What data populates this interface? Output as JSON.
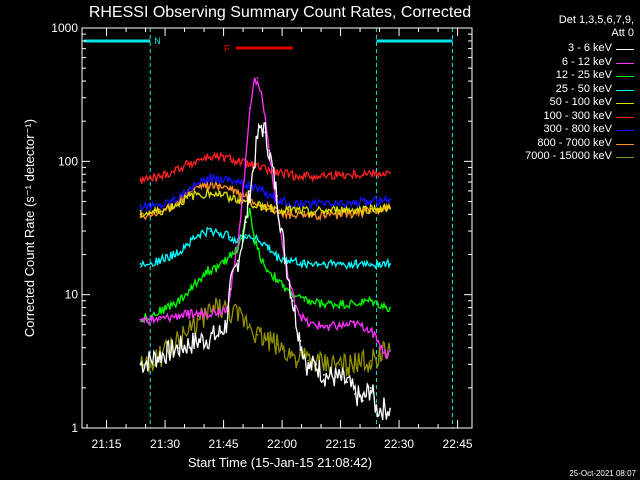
{
  "chart_data": {
    "type": "line",
    "title": "RHESSI Observing Summary Count Rates, Corrected",
    "ylabel": "Corrected Count Rate (s⁻¹ detector⁻¹)",
    "xlabel": "Start Time (15-Jan-15 21:08:42)",
    "y_scale": "log",
    "ylim": [
      1,
      1000
    ],
    "y_ticks": [
      1,
      10,
      100,
      1000
    ],
    "y_tick_labels": [
      "1",
      "10",
      "100",
      "1000"
    ],
    "x_unit": "minutes after 21:08:42",
    "xlim": [
      0,
      100
    ],
    "x_ticks": [
      6.3,
      21.3,
      36.3,
      51.3,
      66.3,
      81.3,
      96.3
    ],
    "x_tick_labels": [
      "21:15",
      "21:30",
      "21:45",
      "22:00",
      "22:15",
      "22:30",
      "22:45"
    ],
    "legend_title": "Det 1,3,5,6,7,9,\nAtt 0",
    "legend_position": "right",
    "annotations": {
      "night_label": "N",
      "flare_label": "F",
      "night_intervals": [
        [
          0.5,
          17.5
        ],
        [
          75.5,
          95.0
        ]
      ],
      "flare_interval": [
        39.5,
        54.0
      ],
      "boundary_lines": [
        17.5,
        75.5,
        95.0
      ],
      "colors": {
        "night": "#00e5e5",
        "flare": "#e00000"
      }
    },
    "series": [
      {
        "name": "3 - 6 keV",
        "color": "#ffffff",
        "points": [
          [
            15,
            3
          ],
          [
            20,
            3.5
          ],
          [
            25,
            4
          ],
          [
            30,
            4.5
          ],
          [
            35,
            5
          ],
          [
            37,
            6
          ],
          [
            38,
            11
          ],
          [
            40,
            18
          ],
          [
            42,
            35
          ],
          [
            43,
            60
          ],
          [
            44,
            90
          ],
          [
            45,
            150
          ],
          [
            46,
            185
          ],
          [
            47,
            165
          ],
          [
            48,
            120
          ],
          [
            50,
            55
          ],
          [
            52,
            20
          ],
          [
            54,
            9
          ],
          [
            56,
            4.5
          ],
          [
            58,
            2.8
          ],
          [
            60,
            3
          ],
          [
            62,
            2.5
          ],
          [
            65,
            2.4
          ],
          [
            68,
            2.2
          ],
          [
            70,
            1.8
          ],
          [
            72,
            1.6
          ],
          [
            74,
            2
          ],
          [
            75.5,
            1.4
          ],
          [
            79,
            1.4
          ]
        ]
      },
      {
        "name": "6 - 12 keV",
        "color": "#ff30ff",
        "points": [
          [
            15,
            6.5
          ],
          [
            20,
            6.5
          ],
          [
            25,
            7
          ],
          [
            30,
            7.2
          ],
          [
            35,
            7.5
          ],
          [
            37,
            8
          ],
          [
            38,
            10
          ],
          [
            40,
            25
          ],
          [
            42,
            100
          ],
          [
            43,
            250
          ],
          [
            44,
            390
          ],
          [
            45,
            420
          ],
          [
            46,
            320
          ],
          [
            47,
            210
          ],
          [
            48,
            120
          ],
          [
            50,
            45
          ],
          [
            52,
            18
          ],
          [
            54,
            10
          ],
          [
            56,
            7
          ],
          [
            58,
            6
          ],
          [
            62,
            5.8
          ],
          [
            66,
            5.8
          ],
          [
            70,
            6
          ],
          [
            74,
            5.5
          ],
          [
            76,
            4.5
          ],
          [
            78,
            3.5
          ],
          [
            79,
            3.8
          ]
        ]
      },
      {
        "name": "12 - 25 keV",
        "color": "#00ff00",
        "points": [
          [
            15,
            6.5
          ],
          [
            20,
            7.5
          ],
          [
            25,
            9
          ],
          [
            28,
            11
          ],
          [
            30,
            13
          ],
          [
            32,
            15
          ],
          [
            35,
            16
          ],
          [
            37,
            18
          ],
          [
            38,
            20
          ],
          [
            40,
            22
          ],
          [
            42,
            35
          ],
          [
            43,
            42
          ],
          [
            44,
            28
          ],
          [
            45,
            22
          ],
          [
            47,
            16
          ],
          [
            50,
            13
          ],
          [
            52,
            11
          ],
          [
            54,
            10
          ],
          [
            57,
            9
          ],
          [
            62,
            8.5
          ],
          [
            66,
            8.5
          ],
          [
            70,
            8.5
          ],
          [
            74,
            9
          ],
          [
            76,
            8.5
          ],
          [
            78,
            8
          ],
          [
            79,
            8
          ]
        ]
      },
      {
        "name": "25 - 50 keV",
        "color": "#00ffff",
        "points": [
          [
            15,
            17
          ],
          [
            20,
            18
          ],
          [
            24,
            20
          ],
          [
            27,
            24
          ],
          [
            30,
            28
          ],
          [
            33,
            30
          ],
          [
            35,
            29
          ],
          [
            38,
            27
          ],
          [
            40,
            26
          ],
          [
            42,
            28
          ],
          [
            45,
            26
          ],
          [
            48,
            22
          ],
          [
            50,
            19
          ],
          [
            53,
            18
          ],
          [
            57,
            17
          ],
          [
            62,
            17
          ],
          [
            66,
            17
          ],
          [
            70,
            17
          ],
          [
            74,
            17
          ],
          [
            76,
            17
          ],
          [
            79,
            17
          ]
        ]
      },
      {
        "name": "50 - 100 keV",
        "color": "#e0e000",
        "points": [
          [
            15,
            40
          ],
          [
            20,
            42
          ],
          [
            24,
            47
          ],
          [
            27,
            53
          ],
          [
            30,
            57
          ],
          [
            33,
            58
          ],
          [
            35,
            57
          ],
          [
            38,
            54
          ],
          [
            40,
            51
          ],
          [
            43,
            49
          ],
          [
            46,
            46
          ],
          [
            50,
            44
          ],
          [
            53,
            43
          ],
          [
            57,
            42
          ],
          [
            62,
            42
          ],
          [
            66,
            43
          ],
          [
            70,
            43
          ],
          [
            74,
            44
          ],
          [
            76,
            44
          ],
          [
            79,
            44
          ]
        ]
      },
      {
        "name": "100 - 300 keV",
        "color": "#ff2020",
        "points": [
          [
            15,
            72
          ],
          [
            20,
            76
          ],
          [
            24,
            86
          ],
          [
            27,
            95
          ],
          [
            30,
            103
          ],
          [
            33,
            108
          ],
          [
            35,
            107
          ],
          [
            38,
            104
          ],
          [
            40,
            100
          ],
          [
            43,
            95
          ],
          [
            46,
            88
          ],
          [
            50,
            82
          ],
          [
            53,
            79
          ],
          [
            57,
            78
          ],
          [
            62,
            78
          ],
          [
            66,
            79
          ],
          [
            70,
            80
          ],
          [
            74,
            81
          ],
          [
            76,
            81
          ],
          [
            79,
            82
          ]
        ]
      },
      {
        "name": "300 - 800 keV",
        "color": "#1010ff",
        "points": [
          [
            15,
            46
          ],
          [
            20,
            47
          ],
          [
            24,
            53
          ],
          [
            27,
            60
          ],
          [
            30,
            68
          ],
          [
            33,
            74
          ],
          [
            35,
            75
          ],
          [
            38,
            74
          ],
          [
            40,
            70
          ],
          [
            43,
            66
          ],
          [
            46,
            60
          ],
          [
            50,
            52
          ],
          [
            53,
            48
          ],
          [
            57,
            47
          ],
          [
            62,
            48
          ],
          [
            66,
            48
          ],
          [
            70,
            49
          ],
          [
            74,
            50
          ],
          [
            76,
            51
          ],
          [
            79,
            52
          ]
        ]
      },
      {
        "name": "800 - 7000 keV",
        "color": "#ff9020",
        "points": [
          [
            15,
            38
          ],
          [
            20,
            41
          ],
          [
            24,
            49
          ],
          [
            27,
            57
          ],
          [
            30,
            64
          ],
          [
            33,
            67
          ],
          [
            35,
            66
          ],
          [
            38,
            62
          ],
          [
            40,
            58
          ],
          [
            43,
            53
          ],
          [
            46,
            47
          ],
          [
            50,
            42
          ],
          [
            53,
            40
          ],
          [
            57,
            39
          ],
          [
            62,
            39
          ],
          [
            66,
            40
          ],
          [
            70,
            41
          ],
          [
            74,
            42
          ],
          [
            76,
            43
          ],
          [
            79,
            45
          ]
        ]
      },
      {
        "name": "7000 - 15000 keV",
        "color": "#909000",
        "points": [
          [
            15,
            3
          ],
          [
            20,
            3.4
          ],
          [
            25,
            4.5
          ],
          [
            28,
            5.5
          ],
          [
            30,
            6.5
          ],
          [
            33,
            7.5
          ],
          [
            35,
            8
          ],
          [
            37,
            7.5
          ],
          [
            40,
            6.8
          ],
          [
            43,
            6
          ],
          [
            45,
            5
          ],
          [
            48,
            4.5
          ],
          [
            50,
            4.2
          ],
          [
            52,
            3.8
          ],
          [
            54,
            3.5
          ],
          [
            58,
            3.2
          ],
          [
            62,
            3
          ],
          [
            66,
            3
          ],
          [
            70,
            3
          ],
          [
            74,
            3.2
          ],
          [
            76,
            3.5
          ],
          [
            79,
            3.8
          ]
        ]
      }
    ]
  },
  "footer_date": "25-Oct-2021 08:07"
}
